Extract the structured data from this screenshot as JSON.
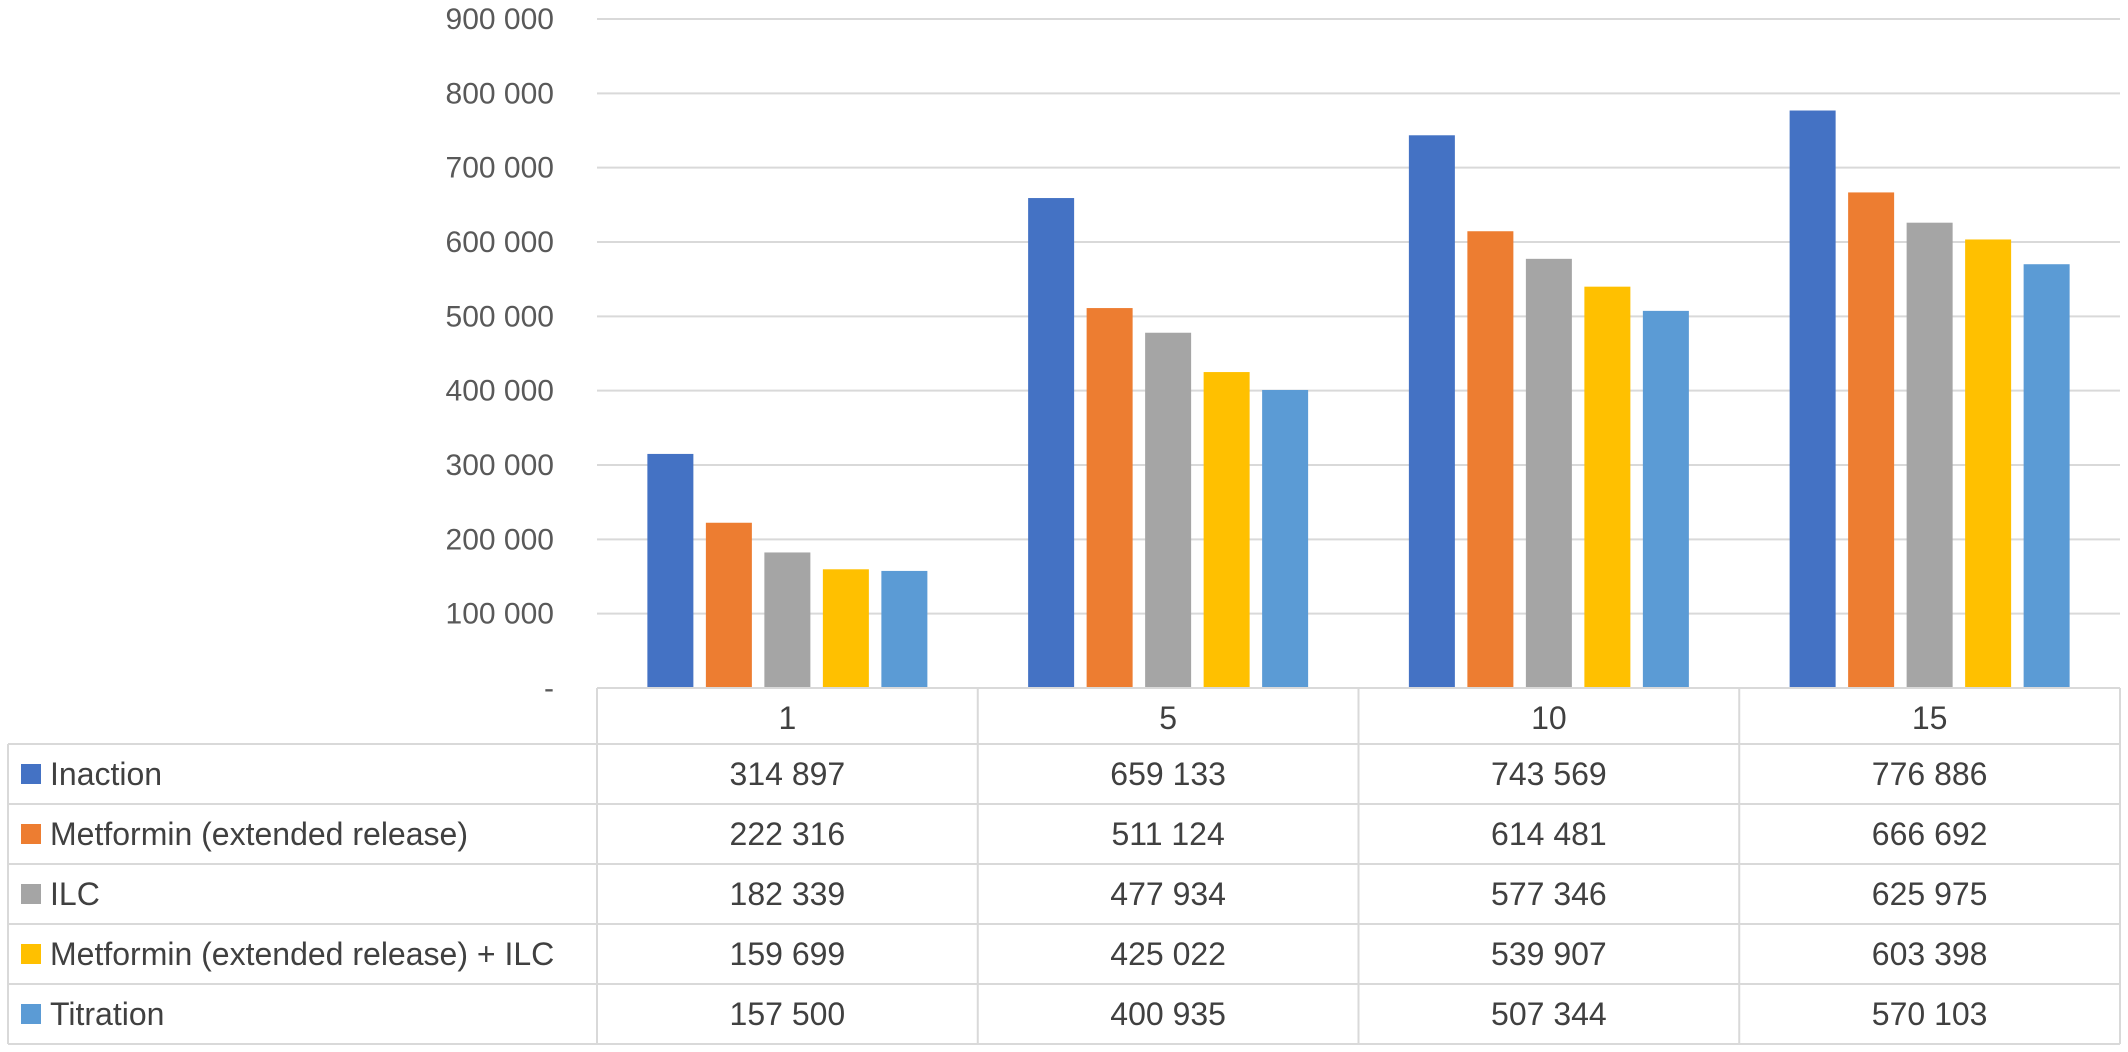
{
  "chart_data": {
    "type": "bar",
    "categories": [
      "1",
      "5",
      "10",
      "15"
    ],
    "series": [
      {
        "name": "Inaction",
        "color": "#4472C4",
        "values": [
          314897,
          659133,
          743569,
          776886
        ],
        "labels": [
          "314 897",
          "659 133",
          "743 569",
          "776 886"
        ]
      },
      {
        "name": "Metformin (extended release)",
        "color": "#ED7D31",
        "values": [
          222316,
          511124,
          614481,
          666692
        ],
        "labels": [
          "222 316",
          "511 124",
          "614 481",
          "666 692"
        ]
      },
      {
        "name": "ILC",
        "color": "#A5A5A5",
        "values": [
          182339,
          477934,
          577346,
          625975
        ],
        "labels": [
          "182 339",
          "477 934",
          "577 346",
          "625 975"
        ]
      },
      {
        "name": "Metformin (extended release)  + ILC",
        "color": "#FFC000",
        "values": [
          159699,
          425022,
          539907,
          603398
        ],
        "labels": [
          "159 699",
          "425 022",
          "539 907",
          "603 398"
        ]
      },
      {
        "name": "Titration",
        "color": "#5B9BD5",
        "values": [
          157500,
          400935,
          507344,
          570103
        ],
        "labels": [
          "157 500",
          "400 935",
          "507 344",
          "570 103"
        ]
      }
    ],
    "ylim": [
      0,
      900000
    ],
    "yticks": [
      0,
      100000,
      200000,
      300000,
      400000,
      500000,
      600000,
      700000,
      800000,
      900000
    ],
    "ytick_labels": [
      "-",
      "100 000",
      "200 000",
      "300 000",
      "400 000",
      "500 000",
      "600 000",
      "700 000",
      "800 000",
      "900 000"
    ],
    "grid": true,
    "legend": "data-table",
    "colors": {
      "grid": "#D9D9D9",
      "text": "#404040"
    }
  }
}
